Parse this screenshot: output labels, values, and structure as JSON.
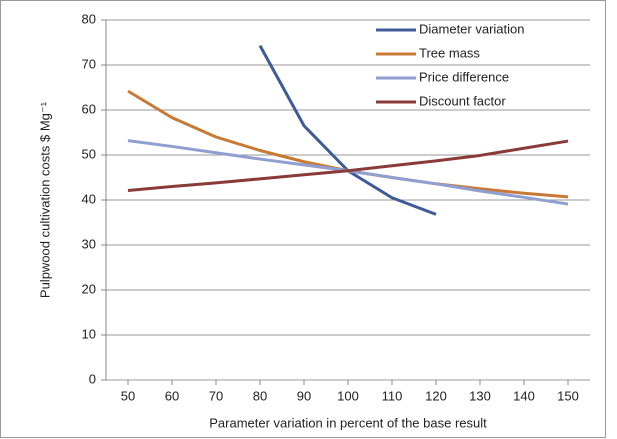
{
  "chart_data": {
    "type": "line",
    "x_label": "Parameter variation in percent of the base result",
    "y_label": "Pulpwood cultivation costs $ Mg⁻¹",
    "x": [
      50,
      60,
      70,
      80,
      90,
      100,
      110,
      120,
      130,
      140,
      150
    ],
    "xlim": [
      45,
      155
    ],
    "xticks": [
      50,
      60,
      70,
      80,
      90,
      100,
      110,
      120,
      130,
      140,
      150
    ],
    "ylim": [
      0,
      80
    ],
    "yticks": [
      0,
      10,
      20,
      30,
      40,
      50,
      60,
      70,
      80
    ],
    "grid": true,
    "legend": "upper right",
    "series": [
      {
        "name": "Diameter variation",
        "color": "#3f5a9a",
        "values": [
          null,
          null,
          null,
          74.3,
          56.5,
          46.5,
          40.5,
          36.8,
          null,
          null,
          null
        ]
      },
      {
        "name": "Tree mass",
        "color": "#c87a35",
        "values": [
          64.2,
          58.3,
          54.0,
          51.0,
          48.5,
          46.5,
          45.0,
          43.6,
          42.5,
          41.5,
          40.7
        ]
      },
      {
        "name": "Price difference",
        "color": "#8f9fd2",
        "values": [
          53.2,
          51.9,
          50.5,
          49.1,
          47.8,
          46.5,
          45.0,
          43.6,
          42.0,
          40.6,
          39.1
        ]
      },
      {
        "name": "Discount factor",
        "color": "#8b3a3a",
        "values": [
          42.1,
          43.0,
          43.8,
          44.7,
          45.6,
          46.5,
          47.6,
          48.7,
          49.9,
          51.5,
          53.1
        ]
      }
    ]
  }
}
